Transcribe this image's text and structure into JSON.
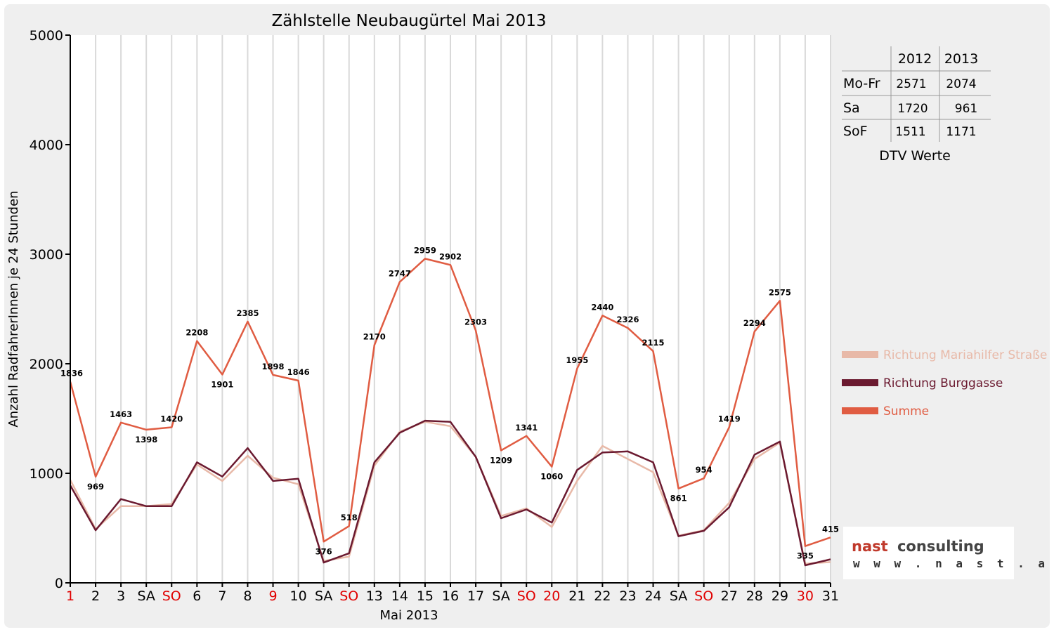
{
  "chart_data": {
    "type": "line",
    "title": "Zählstelle Neubaugürtel Mai 2013",
    "xlabel": "Mai 2013",
    "ylabel": "Anzahl RadfahrerInnen je 24 Stunden",
    "ylim": [
      0,
      5000
    ],
    "yticks": [
      "0",
      "1000",
      "2000",
      "3000",
      "4000",
      "5000"
    ],
    "grid": "vertical",
    "legend_position": "right",
    "categories": [
      "1",
      "2",
      "3",
      "SA",
      "SO",
      "6",
      "7",
      "8",
      "9",
      "10",
      "SA",
      "SO",
      "13",
      "14",
      "15",
      "16",
      "17",
      "SA",
      "SO",
      "20",
      "21",
      "22",
      "23",
      "24",
      "SA",
      "SO",
      "27",
      "28",
      "29",
      "30",
      "31"
    ],
    "red_categories": [
      0,
      4,
      8,
      11,
      18,
      19,
      25,
      29
    ],
    "series": [
      {
        "name": "Richtung Mariahilfer Straße",
        "color": "#e8b9a8",
        "values": [
          940,
          490,
          700,
          700,
          720,
          1080,
          930,
          1160,
          960,
          900,
          200,
          240,
          1070,
          1380,
          1470,
          1430,
          1150,
          610,
          680,
          510,
          930,
          1250,
          1130,
          1010,
          430,
          480,
          730,
          1130,
          1280,
          175,
          190
        ]
      },
      {
        "name": "Richtung Burggasse",
        "color": "#6b1a30",
        "values": [
          890,
          480,
          765,
          700,
          700,
          1100,
          970,
          1230,
          930,
          950,
          185,
          270,
          1100,
          1370,
          1480,
          1470,
          1150,
          590,
          670,
          550,
          1030,
          1190,
          1200,
          1100,
          425,
          475,
          690,
          1170,
          1290,
          160,
          215
        ]
      },
      {
        "name": "Summe",
        "color": "#e05c42",
        "values": [
          1836,
          969,
          1463,
          1398,
          1420,
          2208,
          1901,
          2385,
          1898,
          1846,
          376,
          518,
          2170,
          2747,
          2959,
          2902,
          2303,
          1209,
          1341,
          1060,
          1955,
          2440,
          2326,
          2115,
          861,
          954,
          1419,
          2294,
          2575,
          335,
          415
        ]
      }
    ],
    "data_labels": [
      "1836",
      "969",
      "1463",
      "1398",
      "1420",
      "2208",
      "1901",
      "2385",
      "1898",
      "1846",
      "376",
      "518",
      "2170",
      "2747",
      "2959",
      "2902",
      "2303",
      "1209",
      "1341",
      "1060",
      "1955",
      "2440",
      "2326",
      "2115",
      "861",
      "954",
      "1419",
      "2294",
      "2575",
      "335",
      "415"
    ]
  },
  "dtv_table": {
    "columns": [
      "2012",
      "2013"
    ],
    "rows": [
      {
        "label": "Mo-Fr",
        "v2012": "2571",
        "v2013": "2074"
      },
      {
        "label": "Sa",
        "v2012": "1720",
        "v2013": "961"
      },
      {
        "label": "SoF",
        "v2012": "1511",
        "v2013": "1171"
      }
    ],
    "caption": "DTV Werte"
  },
  "logo": {
    "name_part1": "nast",
    "name_part2": "consulting",
    "url": "w w w . n a s t . a t",
    "color1": "#c0392b",
    "color2": "#444444"
  }
}
